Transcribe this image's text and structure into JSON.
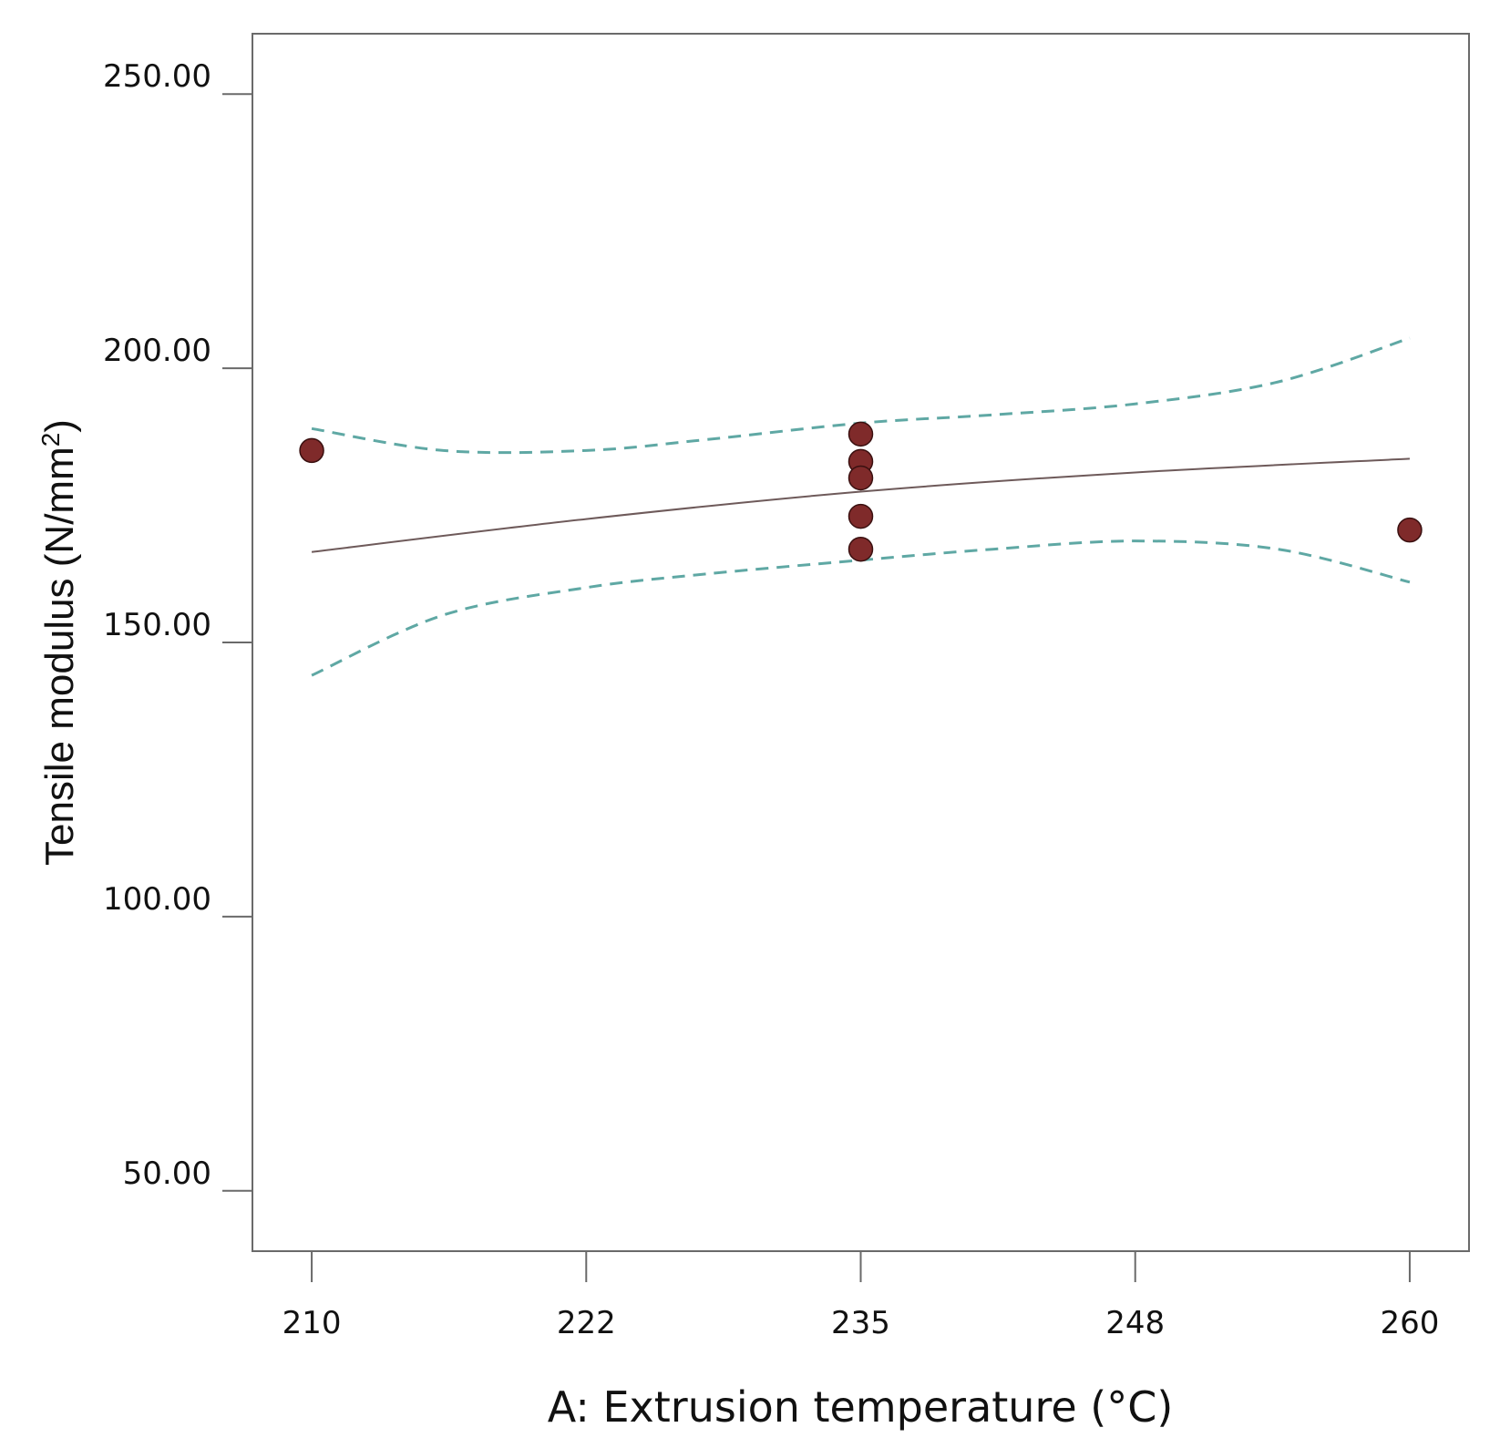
{
  "chart_data": {
    "type": "scatter",
    "xlabel": "A: Extrusion temperature (°C)",
    "ylabel": "Tensile modulus (N/mm",
    "ylabel_sup": "2",
    "ylabel_close": ")",
    "xlim": [
      207.3,
      262.7
    ],
    "ylim": [
      39,
      261
    ],
    "x_ticks": [
      210,
      222.5,
      235,
      247.5,
      260
    ],
    "x_tick_labels": [
      "210",
      "222",
      "235",
      "248",
      "260"
    ],
    "y_ticks": [
      50,
      100,
      150,
      200,
      250
    ],
    "y_tick_labels": [
      "50.00",
      "100.00",
      "150.00",
      "200.00",
      "250.00"
    ],
    "grid": false,
    "colors": {
      "points": "#7f2a2a",
      "fit_line": "#6e5a5a",
      "confidence_band": "#5fa8a4",
      "frame": "#6a6a6a"
    },
    "series": [
      {
        "kind": "points",
        "x": [
          210,
          235,
          235,
          235,
          235,
          235,
          260
        ],
        "y": [
          185,
          188,
          183,
          180,
          173,
          167,
          170.5
        ]
      },
      {
        "kind": "fit",
        "x": [
          210,
          222.5,
          235,
          247.5,
          260
        ],
        "y": [
          166.5,
          172.5,
          177.5,
          181,
          183.5
        ]
      },
      {
        "kind": "ci_upper",
        "x": [
          210,
          216,
          222.5,
          228,
          235,
          241,
          247.5,
          254,
          260
        ],
        "y": [
          189,
          185,
          185,
          187,
          190,
          191.5,
          193.5,
          197.5,
          205.5
        ]
      },
      {
        "kind": "ci_lower",
        "x": [
          210,
          216,
          222.5,
          228,
          235,
          241,
          247.5,
          254,
          260
        ],
        "y": [
          144,
          155,
          160,
          162.5,
          165,
          167,
          168.5,
          167,
          161
        ]
      }
    ]
  }
}
